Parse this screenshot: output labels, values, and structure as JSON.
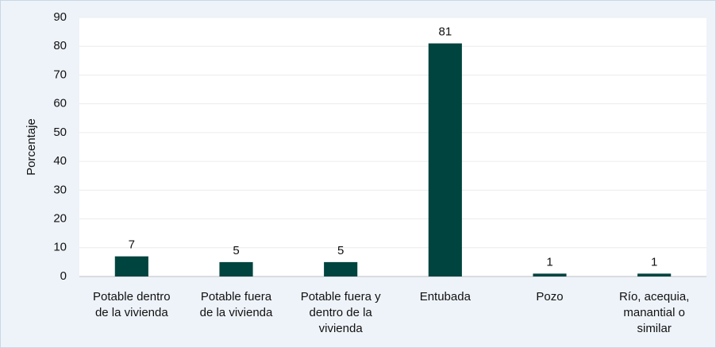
{
  "chart_data": {
    "type": "bar",
    "ylabel": "Porcentaje",
    "categories": [
      "Potable dentro de la vivienda",
      "Potable fuera de la vivienda",
      "Potable fuera y dentro de la vivienda",
      "Entubada",
      "Pozo",
      "Río, acequia, manantial o similar"
    ],
    "values": [
      7,
      5,
      5,
      81,
      1,
      1
    ],
    "color": "#00443f",
    "ylim": [
      0,
      90
    ],
    "yticks": [
      0,
      10,
      20,
      30,
      40,
      50,
      60,
      70,
      80,
      90
    ],
    "grid": true
  }
}
